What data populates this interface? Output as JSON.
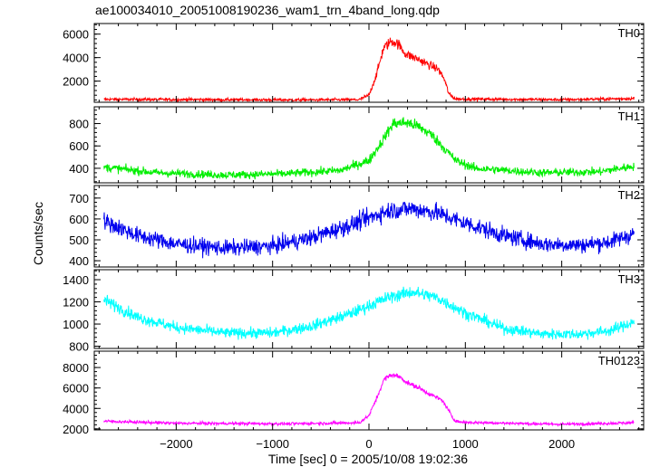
{
  "chart_data": {
    "type": "line",
    "title": "ae100034010_20051008190236_wam1_trn_4band_long.qdp",
    "xlabel": "Time [sec] 0 = 2005/10/08 19:02:36",
    "ylabel": "Counts/sec",
    "xlim": [
      -2850,
      2850
    ],
    "xticks": [
      -2000,
      -1000,
      0,
      1000,
      2000
    ],
    "xtick_labels": [
      "−2000",
      "−1000",
      "0",
      "1000",
      "2000"
    ],
    "grid": false,
    "panels": [
      {
        "name": "TH0",
        "color": "#ff0000",
        "ylim": [
          200,
          6900
        ],
        "yticks": [
          2000,
          4000,
          6000
        ],
        "ytick_labels": [
          "2000",
          "4000",
          "6000"
        ],
        "noise": 130,
        "curve": [
          [
            -2750,
            450
          ],
          [
            -800,
            400
          ],
          [
            -100,
            420
          ],
          [
            0,
            800
          ],
          [
            80,
            2600
          ],
          [
            150,
            4800
          ],
          [
            230,
            5400
          ],
          [
            300,
            5200
          ],
          [
            380,
            4300
          ],
          [
            500,
            3900
          ],
          [
            620,
            3400
          ],
          [
            720,
            3000
          ],
          [
            780,
            2200
          ],
          [
            830,
            900
          ],
          [
            900,
            480
          ],
          [
            2000,
            420
          ],
          [
            2750,
            520
          ]
        ]
      },
      {
        "name": "TH1",
        "color": "#00ee00",
        "ylim": [
          270,
          950
        ],
        "yticks": [
          400,
          600,
          800
        ],
        "ytick_labels": [
          "400",
          "600",
          "800"
        ],
        "noise": 38,
        "curve": [
          [
            -2750,
            410
          ],
          [
            -2200,
            360
          ],
          [
            -1500,
            340
          ],
          [
            -900,
            350
          ],
          [
            -300,
            380
          ],
          [
            0,
            470
          ],
          [
            120,
            620
          ],
          [
            250,
            800
          ],
          [
            380,
            810
          ],
          [
            500,
            780
          ],
          [
            650,
            700
          ],
          [
            780,
            580
          ],
          [
            900,
            470
          ],
          [
            1100,
            400
          ],
          [
            1800,
            360
          ],
          [
            2400,
            370
          ],
          [
            2750,
            420
          ]
        ]
      },
      {
        "name": "TH2",
        "color": "#0000ee",
        "ylim": [
          370,
          760
        ],
        "yticks": [
          400,
          500,
          600,
          700
        ],
        "ytick_labels": [
          "400",
          "500",
          "600",
          "700"
        ],
        "noise": 42,
        "curve": [
          [
            -2750,
            590
          ],
          [
            -2400,
            520
          ],
          [
            -2000,
            480
          ],
          [
            -1500,
            460
          ],
          [
            -1000,
            470
          ],
          [
            -600,
            510
          ],
          [
            -200,
            570
          ],
          [
            200,
            640
          ],
          [
            450,
            650
          ],
          [
            700,
            630
          ],
          [
            1000,
            580
          ],
          [
            1400,
            520
          ],
          [
            1800,
            480
          ],
          [
            2200,
            475
          ],
          [
            2500,
            490
          ],
          [
            2750,
            530
          ]
        ]
      },
      {
        "name": "TH3",
        "color": "#00ffff",
        "ylim": [
          780,
          1490
        ],
        "yticks": [
          800,
          1000,
          1200,
          1400
        ],
        "ytick_labels": [
          "800",
          "1000",
          "1200",
          "1400"
        ],
        "noise": 55,
        "curve": [
          [
            -2750,
            1220
          ],
          [
            -2400,
            1060
          ],
          [
            -2000,
            970
          ],
          [
            -1500,
            920
          ],
          [
            -1000,
            920
          ],
          [
            -600,
            980
          ],
          [
            -200,
            1090
          ],
          [
            200,
            1240
          ],
          [
            450,
            1290
          ],
          [
            700,
            1240
          ],
          [
            1000,
            1100
          ],
          [
            1400,
            960
          ],
          [
            1800,
            910
          ],
          [
            2200,
            910
          ],
          [
            2500,
            940
          ],
          [
            2750,
            1020
          ]
        ]
      },
      {
        "name": "TH0123",
        "color": "#ff00ff",
        "ylim": [
          1900,
          9600
        ],
        "yticks": [
          2000,
          4000,
          6000,
          8000
        ],
        "ytick_labels": [
          "2000",
          "4000",
          "6000",
          "8000"
        ],
        "noise": 150,
        "curve": [
          [
            -2750,
            2750
          ],
          [
            -2000,
            2550
          ],
          [
            -800,
            2500
          ],
          [
            -100,
            2600
          ],
          [
            0,
            3300
          ],
          [
            80,
            5000
          ],
          [
            160,
            6900
          ],
          [
            240,
            7300
          ],
          [
            320,
            7100
          ],
          [
            400,
            6500
          ],
          [
            520,
            6000
          ],
          [
            650,
            5300
          ],
          [
            760,
            4800
          ],
          [
            820,
            3900
          ],
          [
            880,
            2900
          ],
          [
            950,
            2650
          ],
          [
            2000,
            2450
          ],
          [
            2750,
            2600
          ]
        ]
      }
    ]
  }
}
